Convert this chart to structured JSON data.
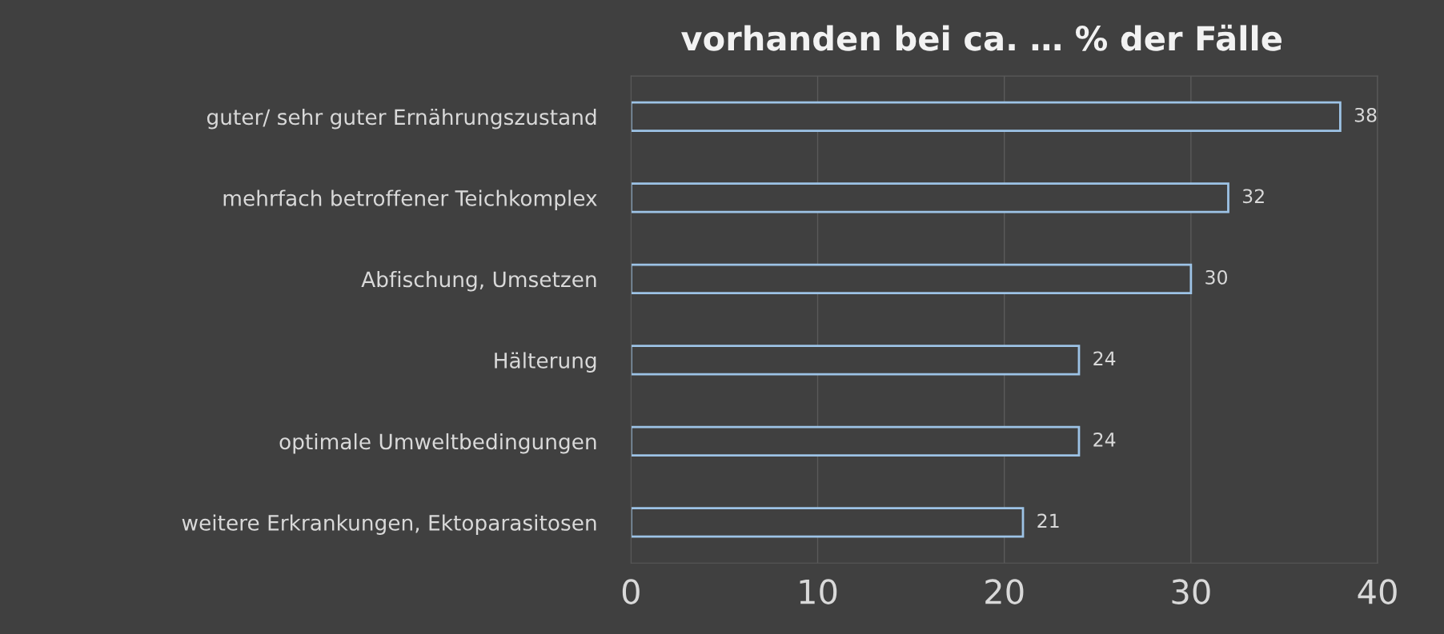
{
  "chart_data": {
    "type": "bar",
    "orientation": "horizontal",
    "title": "vorhanden bei ca. … % der Fälle",
    "categories": [
      "guter/ sehr guter Ernährungszustand",
      "mehrfach betroffener Teichkomplex",
      "Abfischung, Umsetzen",
      "Hälterung",
      "optimale Umweltbedingungen",
      "weitere Erkrankungen, Ektoparasitosen"
    ],
    "values": [
      38,
      32,
      30,
      24,
      24,
      21
    ],
    "color": "#9dc3e6",
    "xlim": [
      0,
      40
    ],
    "xticks": [
      0,
      10,
      20,
      30,
      40
    ],
    "grid": "x",
    "data_labels": true
  }
}
